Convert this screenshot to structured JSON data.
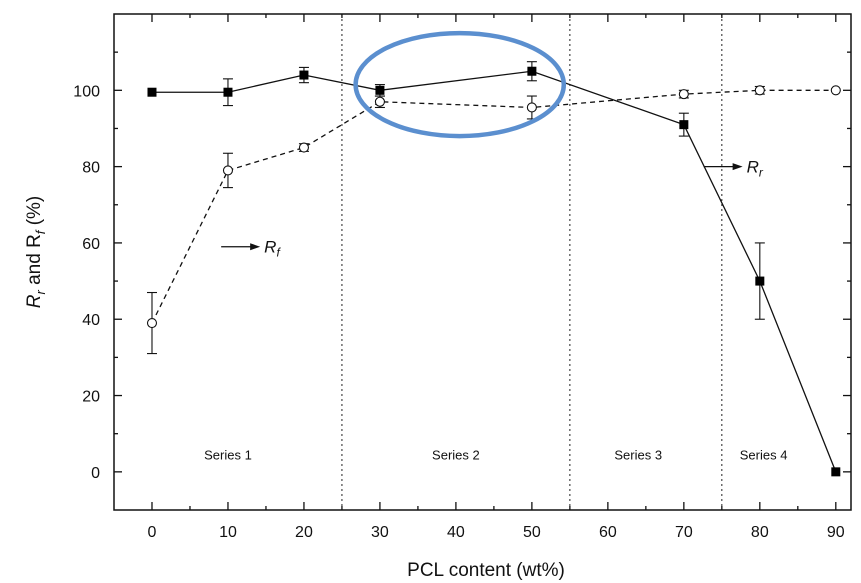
{
  "chart_data": {
    "type": "line",
    "xlabel": "PCL content (wt%)",
    "ylabel_prefix": "R",
    "ylabel_sub1": "r",
    "ylabel_mid": " and R",
    "ylabel_sub2": "f",
    "ylabel_suffix": " (%)",
    "xlim": [
      -5,
      92
    ],
    "ylim": [
      -10,
      120
    ],
    "xticks": [
      0,
      10,
      20,
      30,
      40,
      50,
      60,
      70,
      80,
      90
    ],
    "yticks": [
      0,
      20,
      40,
      60,
      80,
      100
    ],
    "grid": false,
    "series": [
      {
        "name": "Rr",
        "marker": "filled-square",
        "line": "solid",
        "x": [
          0,
          10,
          20,
          30,
          50,
          70,
          80,
          90
        ],
        "y": [
          99.5,
          99.5,
          104,
          100,
          105,
          91,
          50,
          0
        ],
        "err": [
          0,
          3.5,
          2,
          1.5,
          2.5,
          3,
          10,
          0
        ]
      },
      {
        "name": "Rf",
        "marker": "open-circle",
        "line": "dashed",
        "x": [
          0,
          10,
          20,
          30,
          50,
          70,
          80,
          90
        ],
        "y": [
          39,
          79,
          85,
          97,
          95.5,
          99,
          100,
          100
        ],
        "err": [
          8,
          4.5,
          1,
          1.5,
          3,
          1,
          1,
          0
        ]
      }
    ],
    "dividers": [
      25,
      55,
      75
    ],
    "regions": [
      {
        "label": "Series 1",
        "x": 10
      },
      {
        "label": "Series 2",
        "x": 40
      },
      {
        "label": "Series 3",
        "x": 64
      },
      {
        "label": "Series 4",
        "x": 80.5
      }
    ],
    "annotations": [
      {
        "main": "R",
        "sub": "f",
        "x": 14.5,
        "y": 59
      },
      {
        "main": "R",
        "sub": "r",
        "x": 78,
        "y": 80
      }
    ],
    "highlight": {
      "shape": "ellipse",
      "color": "#5b8fcf",
      "cx": 40.5,
      "cy": 101.5,
      "rx": 13.7,
      "ry": 13.5
    }
  }
}
